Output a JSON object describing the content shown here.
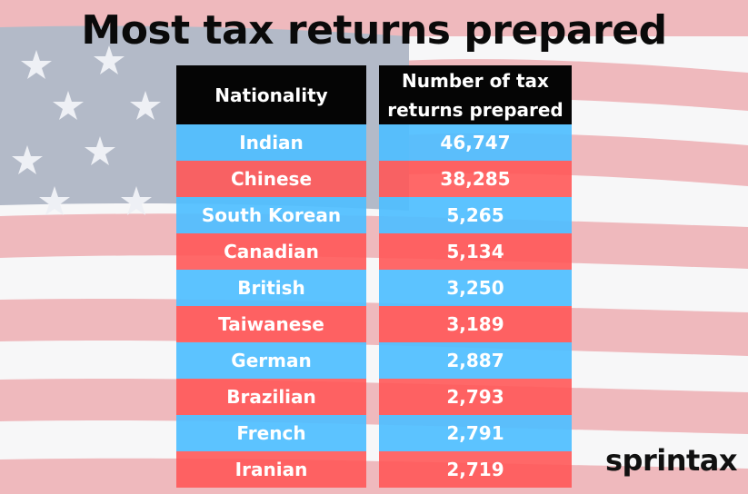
{
  "title": "Most tax returns prepared",
  "logo_text": "sprintax",
  "colors": {
    "row_blue": "#50beff",
    "row_red": "#ff5858",
    "header_bg": "#050505",
    "text": "#ffffff"
  },
  "chart_data": {
    "type": "table",
    "title": "Most tax returns prepared",
    "columns": [
      "Nationality",
      "Number of tax returns prepared"
    ],
    "rows": [
      {
        "nationality": "Indian",
        "value": "46,747"
      },
      {
        "nationality": "Chinese",
        "value": "38,285"
      },
      {
        "nationality": "South Korean",
        "value": "5,265"
      },
      {
        "nationality": "Canadian",
        "value": "5,134"
      },
      {
        "nationality": "British",
        "value": "3,250"
      },
      {
        "nationality": "Taiwanese",
        "value": "3,189"
      },
      {
        "nationality": "German",
        "value": "2,887"
      },
      {
        "nationality": "Brazilian",
        "value": "2,793"
      },
      {
        "nationality": "French",
        "value": "2,791"
      },
      {
        "nationality": "Iranian",
        "value": "2,719"
      }
    ]
  }
}
